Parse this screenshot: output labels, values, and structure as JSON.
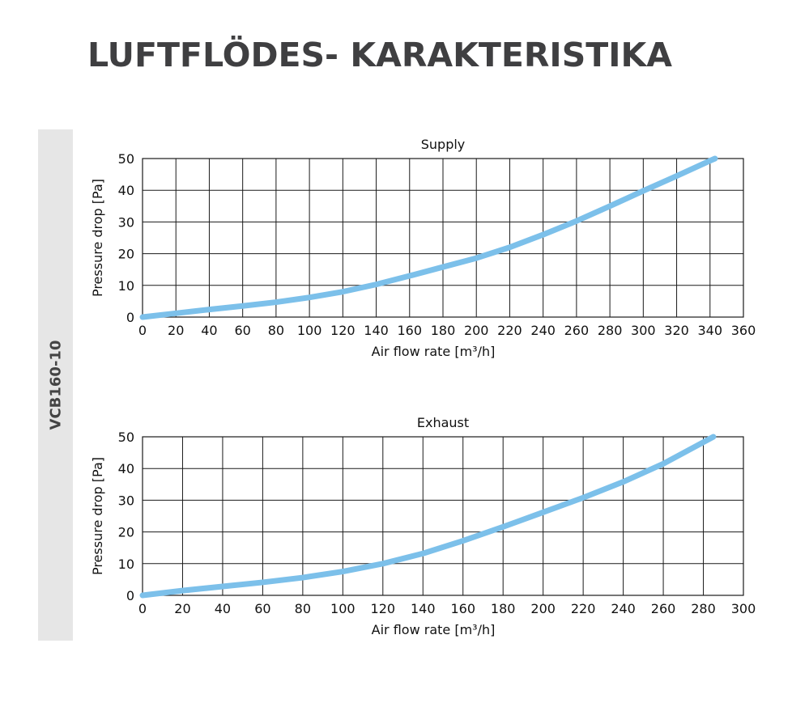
{
  "page": {
    "title": "LUFTFLÖDES- KARAKTERISTIKA",
    "side_label": "VCB160-10"
  },
  "colors": {
    "curve": "#7cc0ea",
    "grid": "#1a1a1a",
    "side_band": "#e6e6e6",
    "title": "#3f3f41"
  },
  "chart_data": [
    {
      "type": "line",
      "title": "Supply",
      "xlabel": "Air flow rate [m³/h]",
      "ylabel": "Pressure drop [Pa]",
      "xlim": [
        0,
        360
      ],
      "ylim": [
        0,
        50
      ],
      "xticks": [
        "0",
        "20",
        "40",
        "60",
        "80",
        "100",
        "120",
        "140",
        "160",
        "180",
        "200",
        "220",
        "240",
        "260",
        "280",
        "300",
        "320",
        "340",
        "360"
      ],
      "yticks": [
        "0",
        "10",
        "20",
        "30",
        "40",
        "50"
      ],
      "grid": true,
      "series": [
        {
          "x": [
            0,
            20,
            40,
            60,
            80,
            100,
            120,
            140,
            160,
            180,
            200,
            220,
            240,
            260,
            280,
            300,
            320,
            340,
            343
          ],
          "y": [
            0,
            1.2,
            2.4,
            3.5,
            4.7,
            6.2,
            8.0,
            10.3,
            13.0,
            15.8,
            18.6,
            22.0,
            26.0,
            30.3,
            35.0,
            39.8,
            44.5,
            49.3,
            50
          ]
        }
      ]
    },
    {
      "type": "line",
      "title": "Exhaust",
      "xlabel": "Air flow rate [m³/h]",
      "ylabel": "Pressure drop [Pa]",
      "xlim": [
        0,
        300
      ],
      "ylim": [
        0,
        50
      ],
      "xticks": [
        "0",
        "20",
        "40",
        "60",
        "80",
        "100",
        "120",
        "140",
        "160",
        "180",
        "200",
        "220",
        "240",
        "260",
        "280",
        "300"
      ],
      "yticks": [
        "0",
        "10",
        "20",
        "30",
        "40",
        "50"
      ],
      "grid": true,
      "series": [
        {
          "x": [
            0,
            20,
            40,
            60,
            80,
            100,
            120,
            140,
            160,
            180,
            200,
            220,
            240,
            260,
            280,
            285
          ],
          "y": [
            0,
            1.5,
            2.8,
            4.1,
            5.6,
            7.5,
            10.0,
            13.2,
            17.2,
            21.6,
            26.2,
            30.8,
            35.8,
            41.5,
            48.3,
            50
          ]
        }
      ]
    }
  ]
}
